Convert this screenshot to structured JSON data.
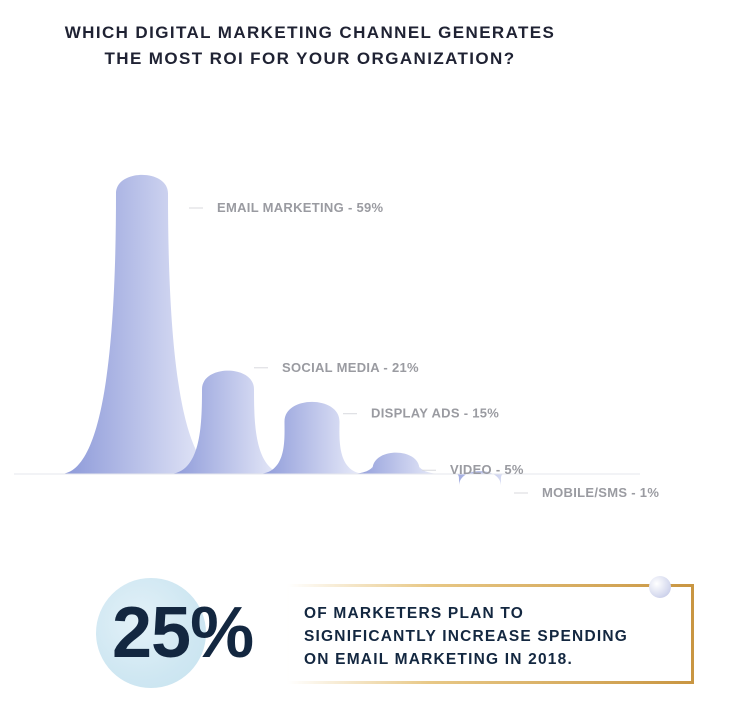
{
  "title_lines": [
    "WHICH DIGITAL MARKETING CHANNEL GENERATES",
    "THE MOST ROI FOR YOUR ORGANIZATION?"
  ],
  "colors": {
    "peak_dark": "#8a97d8",
    "peak_light": "#eef0fb",
    "text_dark": "#132740",
    "label_gray": "#9a9ba1",
    "frame_gold": "#d6a75a",
    "circle_blue": "#cfe7f2"
  },
  "chart_data": {
    "type": "area",
    "title": "WHICH DIGITAL MARKETING CHANNEL GENERATES THE MOST ROI FOR YOUR ORGANIZATION?",
    "categories": [
      "EMAIL MARKETING",
      "SOCIAL MEDIA",
      "DISPLAY ADS",
      "VIDEO",
      "MOBILE/SMS"
    ],
    "values": [
      59,
      21,
      15,
      5,
      1
    ],
    "unit": "%",
    "labels": [
      "EMAIL MARKETING - 59%",
      "SOCIAL MEDIA - 21%",
      "DISPLAY ADS - 15%",
      "VIDEO - 5%",
      "MOBILE/SMS - 1%"
    ],
    "legend": "none",
    "grid": false
  },
  "callout": {
    "stat": "25%",
    "lines": [
      "OF MARKETERS PLAN TO",
      "SIGNIFICANTLY INCREASE SPENDING",
      "ON EMAIL MARKETING IN 2018."
    ]
  }
}
